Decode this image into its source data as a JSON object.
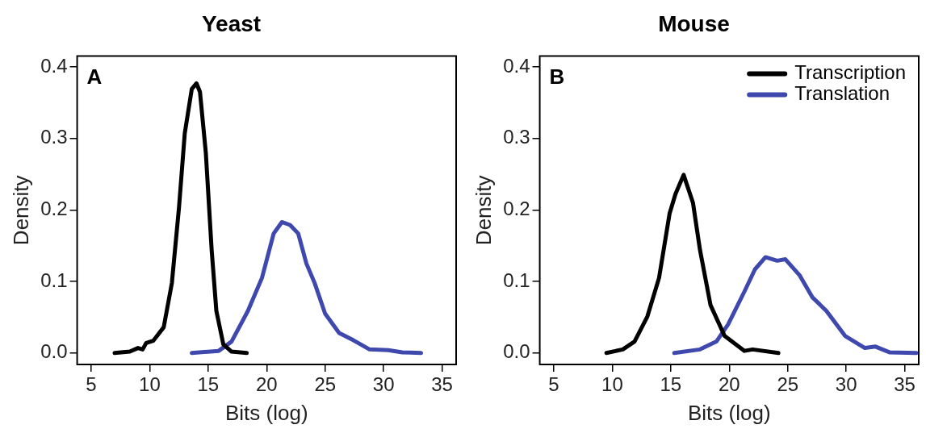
{
  "chart_data": [
    {
      "type": "line",
      "title": "Yeast",
      "xlabel": "Bits (log)",
      "ylabel": "Density",
      "annotations": [
        "A"
      ],
      "xlim": [
        3.8,
        36.2
      ],
      "ylim": [
        -0.016,
        0.415
      ],
      "xticks": [
        5,
        10,
        15,
        20,
        25,
        30,
        35
      ],
      "yticks": [
        {
          "value": 0,
          "label": "0.0"
        },
        {
          "value": 0.1,
          "label": "0.1"
        },
        {
          "value": 0.2,
          "label": "0.2"
        },
        {
          "value": 0.3,
          "label": "0.3"
        },
        {
          "value": 0.4,
          "label": "0.4"
        }
      ],
      "grid": false,
      "legend": false,
      "series": [
        {
          "color": "#000000",
          "x": [
            7.0,
            8.3,
            9.0,
            9.4,
            9.7,
            10.3,
            11.2,
            11.9,
            12.5,
            13.0,
            13.6,
            14.0,
            14.3,
            14.8,
            15.3,
            15.7,
            16.3,
            17.0,
            18.3
          ],
          "values": [
            0,
            0.002,
            0.007,
            0.005,
            0.014,
            0.017,
            0.036,
            0.098,
            0.202,
            0.307,
            0.369,
            0.377,
            0.365,
            0.28,
            0.144,
            0.059,
            0.012,
            0.002,
            0
          ]
        },
        {
          "color": "#3f48ad",
          "x": [
            13.6,
            15.9,
            17.0,
            18.4,
            19.6,
            20.6,
            21.3,
            22.0,
            22.7,
            23.4,
            24.1,
            25.0,
            26.2,
            27.4,
            28.8,
            30.4,
            31.6,
            33.2
          ],
          "values": [
            0,
            0.003,
            0.016,
            0.059,
            0.105,
            0.167,
            0.183,
            0.179,
            0.167,
            0.125,
            0.098,
            0.055,
            0.028,
            0.018,
            0.005,
            0.004,
            0.001,
            0
          ]
        }
      ]
    },
    {
      "type": "line",
      "title": "Mouse",
      "xlabel": "Bits (log)",
      "ylabel": "Density",
      "annotations": [
        "B"
      ],
      "xlim": [
        3.8,
        36.2
      ],
      "ylim": [
        -0.016,
        0.415
      ],
      "xticks": [
        5,
        10,
        15,
        20,
        25,
        30,
        35
      ],
      "yticks": [
        {
          "value": 0,
          "label": "0.0"
        },
        {
          "value": 0.1,
          "label": "0.1"
        },
        {
          "value": 0.2,
          "label": "0.2"
        },
        {
          "value": 0.3,
          "label": "0.3"
        },
        {
          "value": 0.4,
          "label": "0.4"
        }
      ],
      "grid": false,
      "legend": "top right",
      "series": [
        {
          "name": "Transcription",
          "color": "#000000",
          "x": [
            9.5,
            10.9,
            11.9,
            13.0,
            14.0,
            14.9,
            15.4,
            16.1,
            16.9,
            17.5,
            18.4,
            19.6,
            21.3,
            22.0,
            24.2
          ],
          "values": [
            0,
            0.005,
            0.016,
            0.051,
            0.105,
            0.195,
            0.222,
            0.249,
            0.21,
            0.144,
            0.067,
            0.024,
            0.003,
            0.005,
            0
          ]
        },
        {
          "name": "Translation",
          "color": "#3f48ad",
          "x": [
            15.3,
            17.5,
            18.9,
            19.9,
            21.3,
            22.2,
            23.1,
            24.1,
            24.8,
            26.0,
            27.1,
            28.3,
            29.9,
            31.6,
            32.5,
            33.7,
            36.0
          ],
          "values": [
            0,
            0.005,
            0.016,
            0.04,
            0.086,
            0.117,
            0.134,
            0.129,
            0.131,
            0.109,
            0.078,
            0.059,
            0.024,
            0.007,
            0.009,
            0.001,
            0
          ]
        }
      ]
    }
  ]
}
